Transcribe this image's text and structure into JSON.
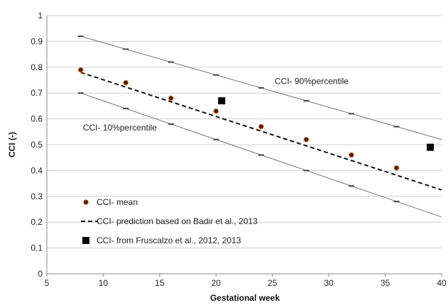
{
  "chart_data": {
    "type": "scatter",
    "title": "",
    "xlabel": "Gestational week",
    "ylabel": "CCI (-)",
    "xlim": [
      5,
      40
    ],
    "ylim": [
      0,
      1
    ],
    "x_ticks": [
      "5",
      "10",
      "15",
      "20",
      "25",
      "30",
      "35",
      "40"
    ],
    "y_ticks": [
      "0",
      "0.1",
      "0.2",
      "0.3",
      "0.4",
      "0.5",
      "0.6",
      "0.7",
      "0.8",
      "0.9",
      "1"
    ],
    "grid": "horizontal",
    "legend_position": "bottom-left",
    "series": [
      {
        "name": "CCI- mean",
        "kind": "scatter-circle",
        "color": "#5a1a0a",
        "x": [
          8,
          12,
          16,
          20,
          24,
          28,
          32,
          36
        ],
        "y": [
          0.79,
          0.74,
          0.68,
          0.63,
          0.57,
          0.52,
          0.46,
          0.41
        ]
      },
      {
        "name": "CCI- prediction based on Badir et al., 2013",
        "kind": "dashed-line",
        "color": "#111111",
        "x": [
          8,
          40
        ],
        "y": [
          0.78,
          0.325
        ]
      },
      {
        "name": "CCI- from Fruscalzo et al., 2012, 2013",
        "kind": "scatter-square",
        "color": "#000000",
        "x": [
          20.5,
          39
        ],
        "y": [
          0.67,
          0.49
        ]
      },
      {
        "name": "",
        "kind": "percentile-line",
        "color": "#777777",
        "x": [
          8,
          12,
          16,
          20,
          24,
          28,
          32,
          36,
          40
        ],
        "y": [
          0.92,
          0.87,
          0.82,
          0.77,
          0.72,
          0.67,
          0.62,
          0.57,
          0.52
        ]
      },
      {
        "name": "",
        "kind": "percentile-line",
        "color": "#777777",
        "x": [
          8,
          12,
          16,
          20,
          24,
          28,
          32,
          36,
          40
        ],
        "y": [
          0.7,
          0.64,
          0.58,
          0.52,
          0.46,
          0.4,
          0.34,
          0.28,
          0.22
        ]
      }
    ],
    "annotations": [
      {
        "text": "CCI- 90%percentile",
        "x": 25.2,
        "y": 0.735
      },
      {
        "text": "CCI- 10%percentile",
        "x": 8.2,
        "y": 0.555
      }
    ]
  }
}
